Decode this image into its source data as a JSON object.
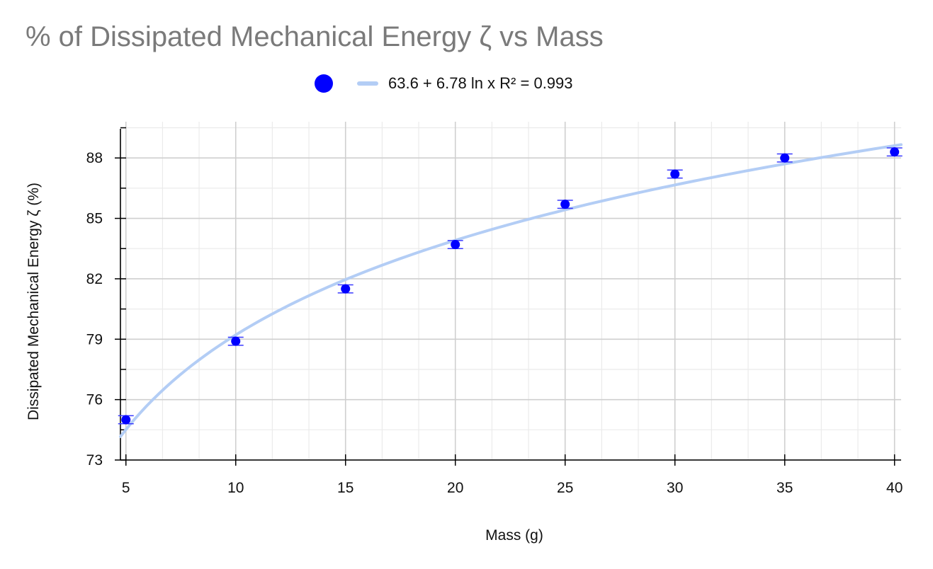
{
  "chart_data": {
    "type": "scatter",
    "title": "% of Dissipated Mechanical Energy ζ vs Mass",
    "xlabel": "Mass (g)",
    "ylabel": "Dissipated Mechanical Energy ζ (%)",
    "xlim": [
      4.75,
      40.3
    ],
    "ylim": [
      73,
      89.8
    ],
    "xticks": [
      5,
      10,
      15,
      20,
      25,
      30,
      35,
      40
    ],
    "yticks": [
      73,
      76,
      79,
      82,
      85,
      88
    ],
    "grid": true,
    "legend_position": "top-center",
    "series": [
      {
        "type": "scatter",
        "color": "#0000ff",
        "x": [
          5,
          10,
          15,
          20,
          25,
          30,
          35,
          40
        ],
        "y": [
          75.0,
          78.9,
          81.5,
          83.7,
          85.7,
          87.2,
          88.0,
          88.3
        ],
        "error": [
          0.2,
          0.2,
          0.2,
          0.2,
          0.2,
          0.2,
          0.2,
          0.2
        ]
      },
      {
        "name": "63.6 + 6.78 ln x R² = 0.993",
        "type": "line",
        "color": "#b3cdf5",
        "fit": {
          "model": "logarithmic",
          "a": 63.6,
          "b": 6.78,
          "r2": 0.993
        }
      }
    ]
  }
}
